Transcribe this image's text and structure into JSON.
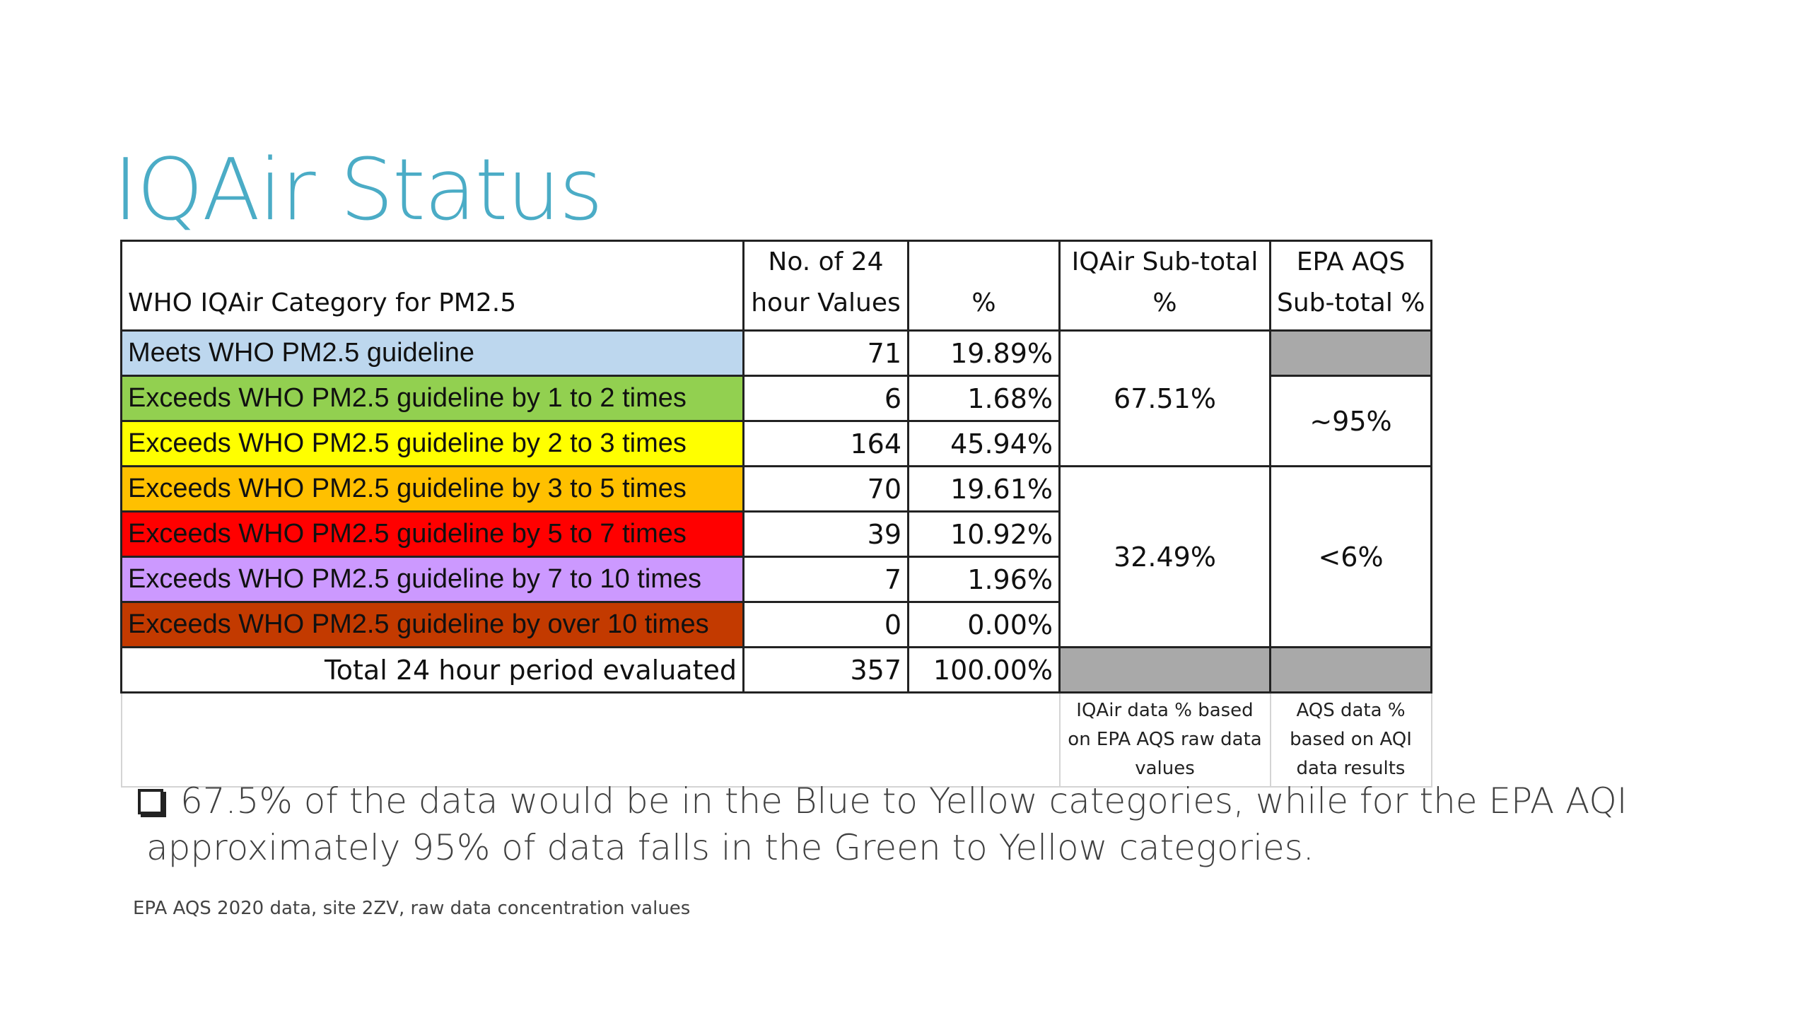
{
  "title": "IQAir Status",
  "table": {
    "headers": {
      "category": "WHO IQAir Category for PM2.5",
      "count_line1": "No. of 24",
      "count_line2": "hour Values",
      "pct": "%",
      "iqair_sub_line1": "IQAir Sub-total",
      "iqair_sub_line2": "%",
      "epa_sub_line1": "EPA AQS",
      "epa_sub_line2": "Sub-total %"
    },
    "rows": [
      {
        "category": "Meets WHO PM2.5 guideline",
        "count": "71",
        "pct": "19.89%",
        "color": "#bdd7ee"
      },
      {
        "category": "Exceeds WHO PM2.5 guideline by 1 to 2 times",
        "count": "6",
        "pct": "1.68%",
        "color": "#92d050"
      },
      {
        "category": "Exceeds WHO PM2.5 guideline by 2 to 3 times",
        "count": "164",
        "pct": "45.94%",
        "color": "#ffff00"
      },
      {
        "category": "Exceeds WHO PM2.5 guideline by 3 to 5 times",
        "count": "70",
        "pct": "19.61%",
        "color": "#ffc000"
      },
      {
        "category": "Exceeds WHO PM2.5 guideline by 5 to 7 times",
        "count": "39",
        "pct": "10.92%",
        "color": "#ff0000"
      },
      {
        "category": "Exceeds WHO PM2.5 guideline by 7 to 10 times",
        "count": "7",
        "pct": "1.96%",
        "color": "#cc99ff"
      },
      {
        "category": "Exceeds WHO PM2.5 guideline by over 10 times",
        "count": "0",
        "pct": "0.00%",
        "color": "#c33a00"
      }
    ],
    "iqair_subtotals": [
      "67.51%",
      "32.49%"
    ],
    "epa_subtotals": [
      "~95%",
      "<6%"
    ],
    "total": {
      "label": "Total 24 hour period evaluated",
      "count": "357",
      "pct": "100.00%"
    },
    "notes": {
      "iqair": "IQAir data % based on EPA AQS raw data values",
      "epa": "AQS data % based on AQI data results"
    }
  },
  "bullet": {
    "line1": "67.5% of the data would be in the Blue to Yellow categories, while for the EPA AQI",
    "line2": "approximately 95% of data falls in the Green to Yellow categories."
  },
  "footnote": "EPA AQS 2020 data, site 2ZV, raw data concentration values"
}
